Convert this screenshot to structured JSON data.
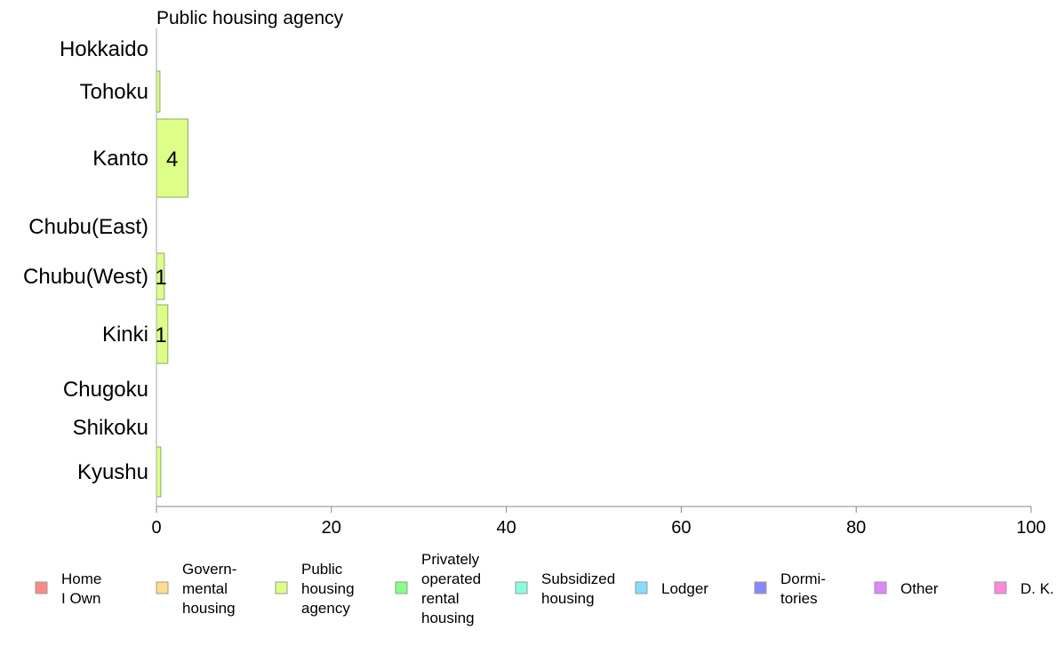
{
  "chart_data": {
    "type": "bar",
    "orientation": "horizontal",
    "title": "Public housing agency",
    "categories": [
      "Hokkaido",
      "Tohoku",
      "Kanto",
      "Chubu(East)",
      "Chubu(West)",
      "Kinki",
      "Chugoku",
      "Shikoku",
      "Kyushu"
    ],
    "values": [
      0,
      0.4,
      3.6,
      0,
      0.9,
      1.3,
      0,
      0,
      0.5
    ],
    "data_labels": [
      "",
      "",
      "4",
      "",
      "1",
      "1",
      "",
      "",
      ""
    ],
    "xlim": [
      0,
      100
    ],
    "xticks": [
      0,
      20,
      40,
      60,
      80,
      100
    ],
    "xtick_labels": [
      "0",
      "20",
      "40",
      "60",
      "80",
      "100"
    ],
    "bar_color": "#ddff88",
    "grid": false,
    "legend_placement": "bottom",
    "legend": [
      {
        "lines": [
          "Home",
          "I Own"
        ],
        "color": "#ff8888"
      },
      {
        "lines": [
          "Govern-",
          "mental",
          " housing"
        ],
        "color": "#ffdd88"
      },
      {
        "lines": [
          "Public",
          "housing",
          "agency"
        ],
        "color": "#ddff88"
      },
      {
        "lines": [
          "Privately",
          "operated",
          "rental",
          "housing"
        ],
        "color": "#88ff88"
      },
      {
        "lines": [
          "Subsidized",
          " housing"
        ],
        "color": "#88ffdd"
      },
      {
        "lines": [
          "Lodger"
        ],
        "color": "#88ddff"
      },
      {
        "lines": [
          "Dormi-",
          "tories"
        ],
        "color": "#8888ff"
      },
      {
        "lines": [
          "Other"
        ],
        "color": "#dd88ff"
      },
      {
        "lines": [
          "D. K."
        ],
        "color": "#ff88dd"
      }
    ]
  }
}
